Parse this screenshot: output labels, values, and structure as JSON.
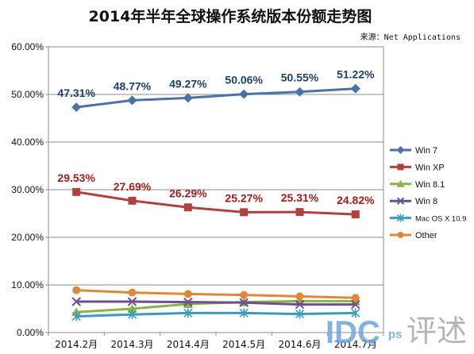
{
  "chart_data": {
    "type": "line",
    "title": "2014年半年全球操作系统版本份额走势图",
    "source": "来源：Net Applications",
    "categories": [
      "2014.2月",
      "2014.3月",
      "2014.4月",
      "2014.5月",
      "2014.6月",
      "2014.7月"
    ],
    "ylim": [
      0,
      60
    ],
    "yticks": [
      "0.00%",
      "10.00%",
      "20.00%",
      "30.00%",
      "40.00%",
      "50.00%",
      "60.00%"
    ],
    "grid": true,
    "legend_position": "right",
    "series": [
      {
        "name": "Win 7",
        "color": "#4a72a6",
        "marker": "diamond",
        "values": [
          47.31,
          48.77,
          49.27,
          50.06,
          50.55,
          51.22
        ],
        "labels": [
          "47.31%",
          "48.77%",
          "49.27%",
          "50.06%",
          "50.55%",
          "51.22%"
        ],
        "label_color": "#1f3e6b"
      },
      {
        "name": "Win XP",
        "color": "#b0413e",
        "marker": "square",
        "values": [
          29.53,
          27.69,
          26.29,
          25.27,
          25.31,
          24.82
        ],
        "labels": [
          "29.53%",
          "27.69%",
          "26.29%",
          "25.27%",
          "25.31%",
          "24.82%"
        ],
        "label_color": "#a31c1c"
      },
      {
        "name": "Win 8.1",
        "color": "#8cb24a",
        "marker": "triangle",
        "values": [
          4.3,
          5.0,
          6.0,
          6.4,
          6.6,
          6.6
        ],
        "labels": [],
        "label_color": ""
      },
      {
        "name": "Win 8",
        "color": "#6b4f8f",
        "marker": "x",
        "values": [
          6.5,
          6.5,
          6.4,
          6.3,
          5.9,
          5.9
        ],
        "labels": [],
        "label_color": ""
      },
      {
        "name": "Mac OS X 10.9",
        "color": "#3a9cc0",
        "marker": "star",
        "values": [
          3.4,
          3.8,
          4.1,
          4.1,
          3.9,
          4.1
        ],
        "labels": [],
        "label_color": ""
      },
      {
        "name": "Other",
        "color": "#e0883a",
        "marker": "circle",
        "values": [
          8.9,
          8.4,
          8.1,
          7.9,
          7.6,
          7.3
        ],
        "labels": [],
        "label_color": ""
      }
    ]
  },
  "watermark": {
    "logo": "IDC",
    "small": "ps",
    "calligraphy": "评述"
  }
}
